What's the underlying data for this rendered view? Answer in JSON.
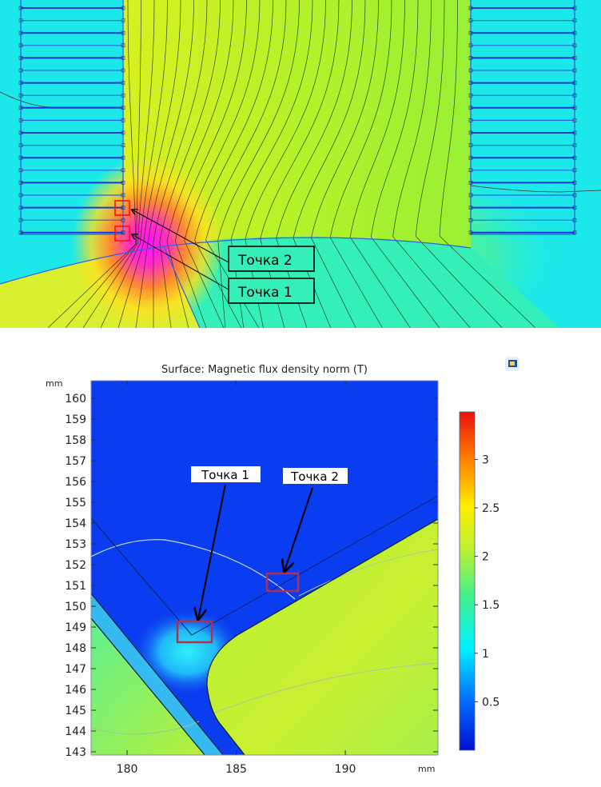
{
  "top_figure": {
    "labels": [
      "Точка 2",
      "Точка 1"
    ],
    "colors": {
      "air": "#1ce8ea",
      "core": "#b8f028",
      "hot": "#ff20ff",
      "coil": "#2040e0",
      "lower": "#30f0c0"
    }
  },
  "chart_data": {
    "type": "heatmap",
    "title": "Surface: Magnetic flux density norm (T)",
    "xlabel": "mm",
    "ylabel": "mm",
    "xlim": [
      178.35,
      194.25
    ],
    "ylim": [
      142.85,
      160.85
    ],
    "x_ticks": [
      180,
      185,
      190
    ],
    "y_ticks": [
      143,
      144,
      145,
      146,
      147,
      148,
      149,
      150,
      151,
      152,
      153,
      154,
      155,
      156,
      157,
      158,
      159,
      160
    ],
    "colorbar": {
      "range": [
        0,
        3.49
      ],
      "ticks": [
        0.5,
        1,
        1.5,
        2,
        2.5,
        3
      ],
      "colormap": "rainbow"
    },
    "annotations": [
      {
        "text": "Точка 1",
        "x": 183.0,
        "y": 148.7
      },
      {
        "text": "Точка 2",
        "x": 187.0,
        "y": 151.1
      }
    ]
  }
}
